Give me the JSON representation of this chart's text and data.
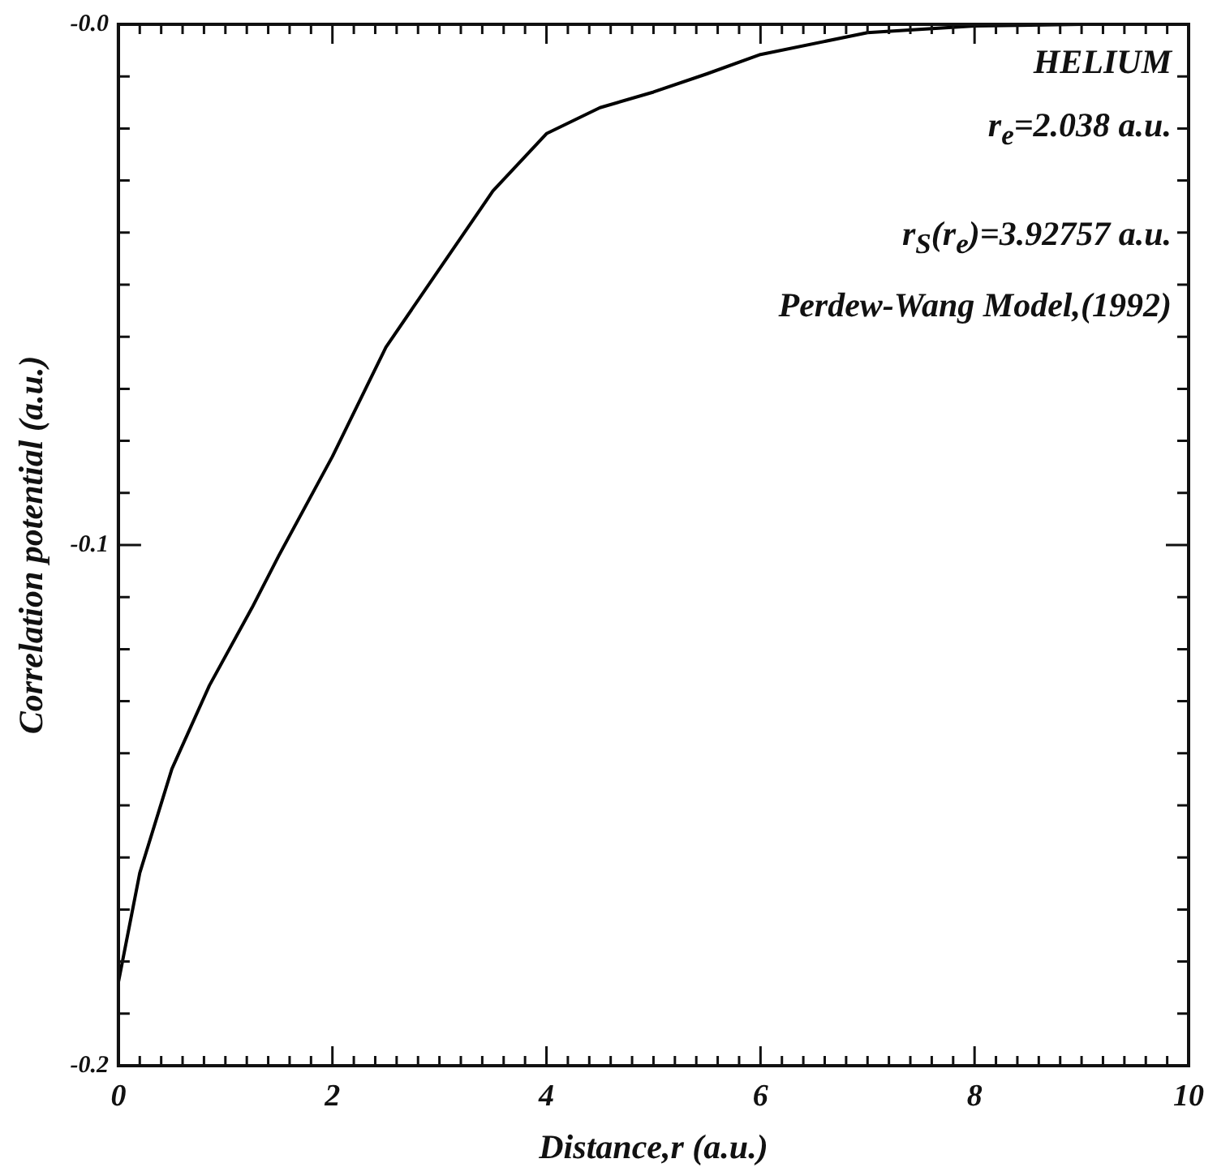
{
  "chart_data": {
    "type": "line",
    "xlabel": "Distance,r (a.u.)",
    "ylabel": "Correlation potential (a.u.)",
    "annotations": [
      "HELIUM",
      "r$_{e}$=2.038 a.u.",
      "r$_{S}$(r$_{e}$)=3.92757 a.u.",
      "Perdew-Wang Model,(1992)"
    ],
    "x": [
      0,
      0.2,
      0.5,
      0.85,
      1.25,
      1.5,
      2,
      2.5,
      3,
      3.5,
      4,
      4.5,
      5,
      5.5,
      6,
      7,
      8,
      9,
      10
    ],
    "series": [
      {
        "color": "#000000",
        "values": [
          -0.184,
          -0.163,
          -0.143,
          -0.127,
          -0.112,
          -0.102,
          -0.083,
          -0.062,
          -0.047,
          -0.032,
          -0.021,
          -0.016,
          -0.013,
          -0.0095,
          -0.0058,
          -0.0016,
          -0.0003,
          0,
          0
        ]
      }
    ],
    "xlim": [
      0,
      10
    ],
    "xticks": [
      0,
      {
        "value": 0.2,
        "label": null
      },
      {
        "value": 0.4,
        "label": null
      },
      {
        "value": 0.6,
        "label": null
      },
      {
        "value": 0.8,
        "label": null
      },
      {
        "value": 1,
        "label": null
      },
      {
        "value": 1.2,
        "label": null
      },
      {
        "value": 1.4,
        "label": null
      },
      {
        "value": 1.6,
        "label": null
      },
      {
        "value": 1.8,
        "label": null
      },
      2,
      {
        "value": 2.2,
        "label": null
      },
      {
        "value": 2.4,
        "label": null
      },
      {
        "value": 2.6,
        "label": null
      },
      {
        "value": 2.8,
        "label": null
      },
      {
        "value": 3,
        "label": null
      },
      {
        "value": 3.2,
        "label": null
      },
      {
        "value": 3.4,
        "label": null
      },
      {
        "value": 3.6,
        "label": null
      },
      {
        "value": 3.8,
        "label": null
      },
      4,
      {
        "value": 4.2,
        "label": null
      },
      {
        "value": 4.4,
        "label": null
      },
      {
        "value": 4.6,
        "label": null
      },
      {
        "value": 4.8,
        "label": null
      },
      {
        "value": 5,
        "label": null
      },
      {
        "value": 5.2,
        "label": null
      },
      {
        "value": 5.4,
        "label": null
      },
      {
        "value": 5.6,
        "label": null
      },
      {
        "value": 5.8,
        "label": null
      },
      6,
      {
        "value": 6.2,
        "label": null
      },
      {
        "value": 6.4,
        "label": null
      },
      {
        "value": 6.6,
        "label": null
      },
      {
        "value": 6.8,
        "label": null
      },
      {
        "value": 7,
        "label": null
      },
      {
        "value": 7.2,
        "label": null
      },
      {
        "value": 7.4,
        "label": null
      },
      {
        "value": 7.6,
        "label": null
      },
      {
        "value": 7.8,
        "label": null
      },
      8,
      {
        "value": 8.2,
        "label": null
      },
      {
        "value": 8.4,
        "label": null
      },
      {
        "value": 8.6,
        "label": null
      },
      {
        "value": 8.8,
        "label": null
      },
      {
        "value": 9,
        "label": null
      },
      {
        "value": 9.2,
        "label": null
      },
      {
        "value": 9.4,
        "label": null
      },
      {
        "value": 9.6,
        "label": null
      },
      {
        "value": 9.8,
        "label": null
      },
      10
    ],
    "ylim": [
      -0.2,
      0
    ],
    "yticks": [
      {
        "value": -0.2,
        "label": "-0.2"
      },
      {
        "value": -0.19,
        "label": null
      },
      {
        "value": -0.18,
        "label": null
      },
      {
        "value": -0.17,
        "label": null
      },
      {
        "value": -0.16,
        "label": null
      },
      {
        "value": -0.15,
        "label": null
      },
      {
        "value": -0.14,
        "label": null
      },
      {
        "value": -0.13,
        "label": null
      },
      {
        "value": -0.12,
        "label": null
      },
      {
        "value": -0.11,
        "label": null
      },
      {
        "value": -0.1,
        "label": "-0.1"
      },
      {
        "value": -0.09,
        "label": null
      },
      {
        "value": -0.08,
        "label": null
      },
      {
        "value": -0.07,
        "label": null
      },
      {
        "value": -0.06,
        "label": null
      },
      {
        "value": -0.05,
        "label": null
      },
      {
        "value": -0.04,
        "label": null
      },
      {
        "value": -0.03,
        "label": null
      },
      {
        "value": -0.02,
        "label": null
      },
      {
        "value": -0.01,
        "label": null
      },
      {
        "value": 0,
        "label": "-0.0"
      }
    ],
    "grid": false,
    "legend": false,
    "marker": "none",
    "line_style": "solid"
  }
}
